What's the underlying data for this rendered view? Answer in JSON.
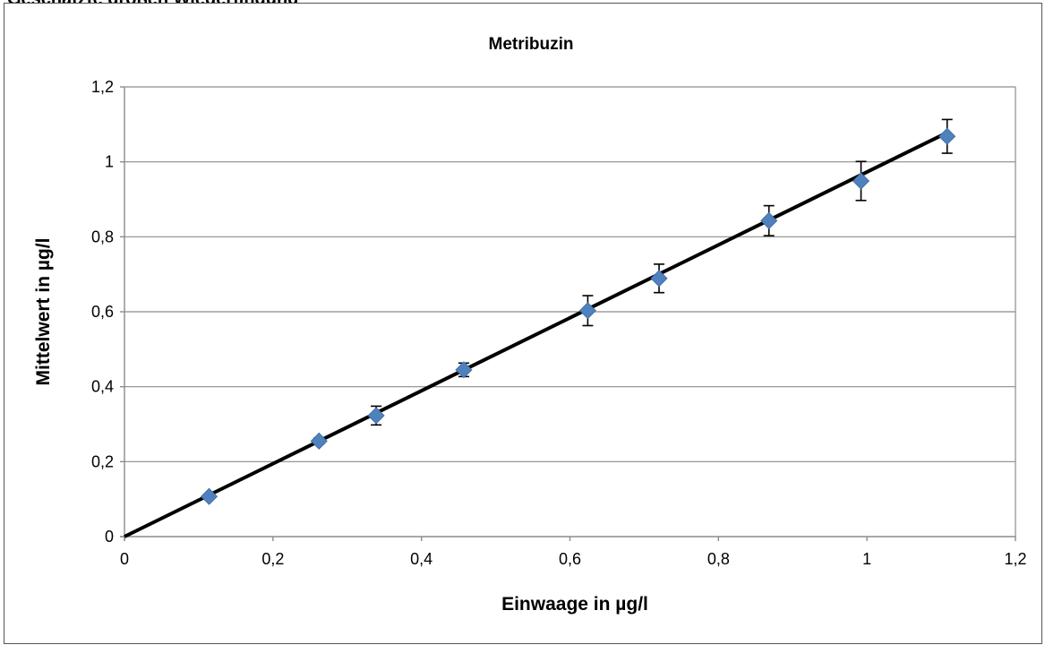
{
  "header": {
    "text": "Geschätzte großen Wiederfindung"
  },
  "chart_data": {
    "type": "scatter",
    "title": "Metribuzin",
    "xlabel": "Einwaage in µg/l",
    "ylabel": "Mittelwert in µg/l",
    "xlim": [
      0,
      1.2
    ],
    "ylim": [
      0,
      1.2
    ],
    "x_ticks": [
      0,
      0.2,
      0.4,
      0.6,
      0.8,
      1.0,
      1.2
    ],
    "y_ticks": [
      0,
      0.2,
      0.4,
      0.6,
      0.8,
      1.0,
      1.2
    ],
    "x_tick_labels": [
      "0",
      "0,2",
      "0,4",
      "0,6",
      "0,8",
      "1",
      "1,2"
    ],
    "y_tick_labels": [
      "0",
      "0,2",
      "0,4",
      "0,6",
      "0,8",
      "1",
      "1,2"
    ],
    "grid": "horizontal",
    "legend": "none",
    "series": [
      {
        "x": [
          0.114,
          0.262,
          0.339,
          0.457,
          0.624,
          0.72,
          0.868,
          0.992,
          1.108
        ],
        "y": [
          0.107,
          0.255,
          0.323,
          0.445,
          0.603,
          0.689,
          0.843,
          0.949,
          1.068
        ],
        "error": [
          0.005,
          0.008,
          0.025,
          0.018,
          0.04,
          0.038,
          0.04,
          0.052,
          0.045
        ],
        "color": "#4f81bd",
        "marker": "diamond"
      }
    ],
    "trendline": {
      "x": [
        0,
        1.108
      ],
      "y": [
        0,
        1.078
      ],
      "color": "#000000"
    }
  }
}
